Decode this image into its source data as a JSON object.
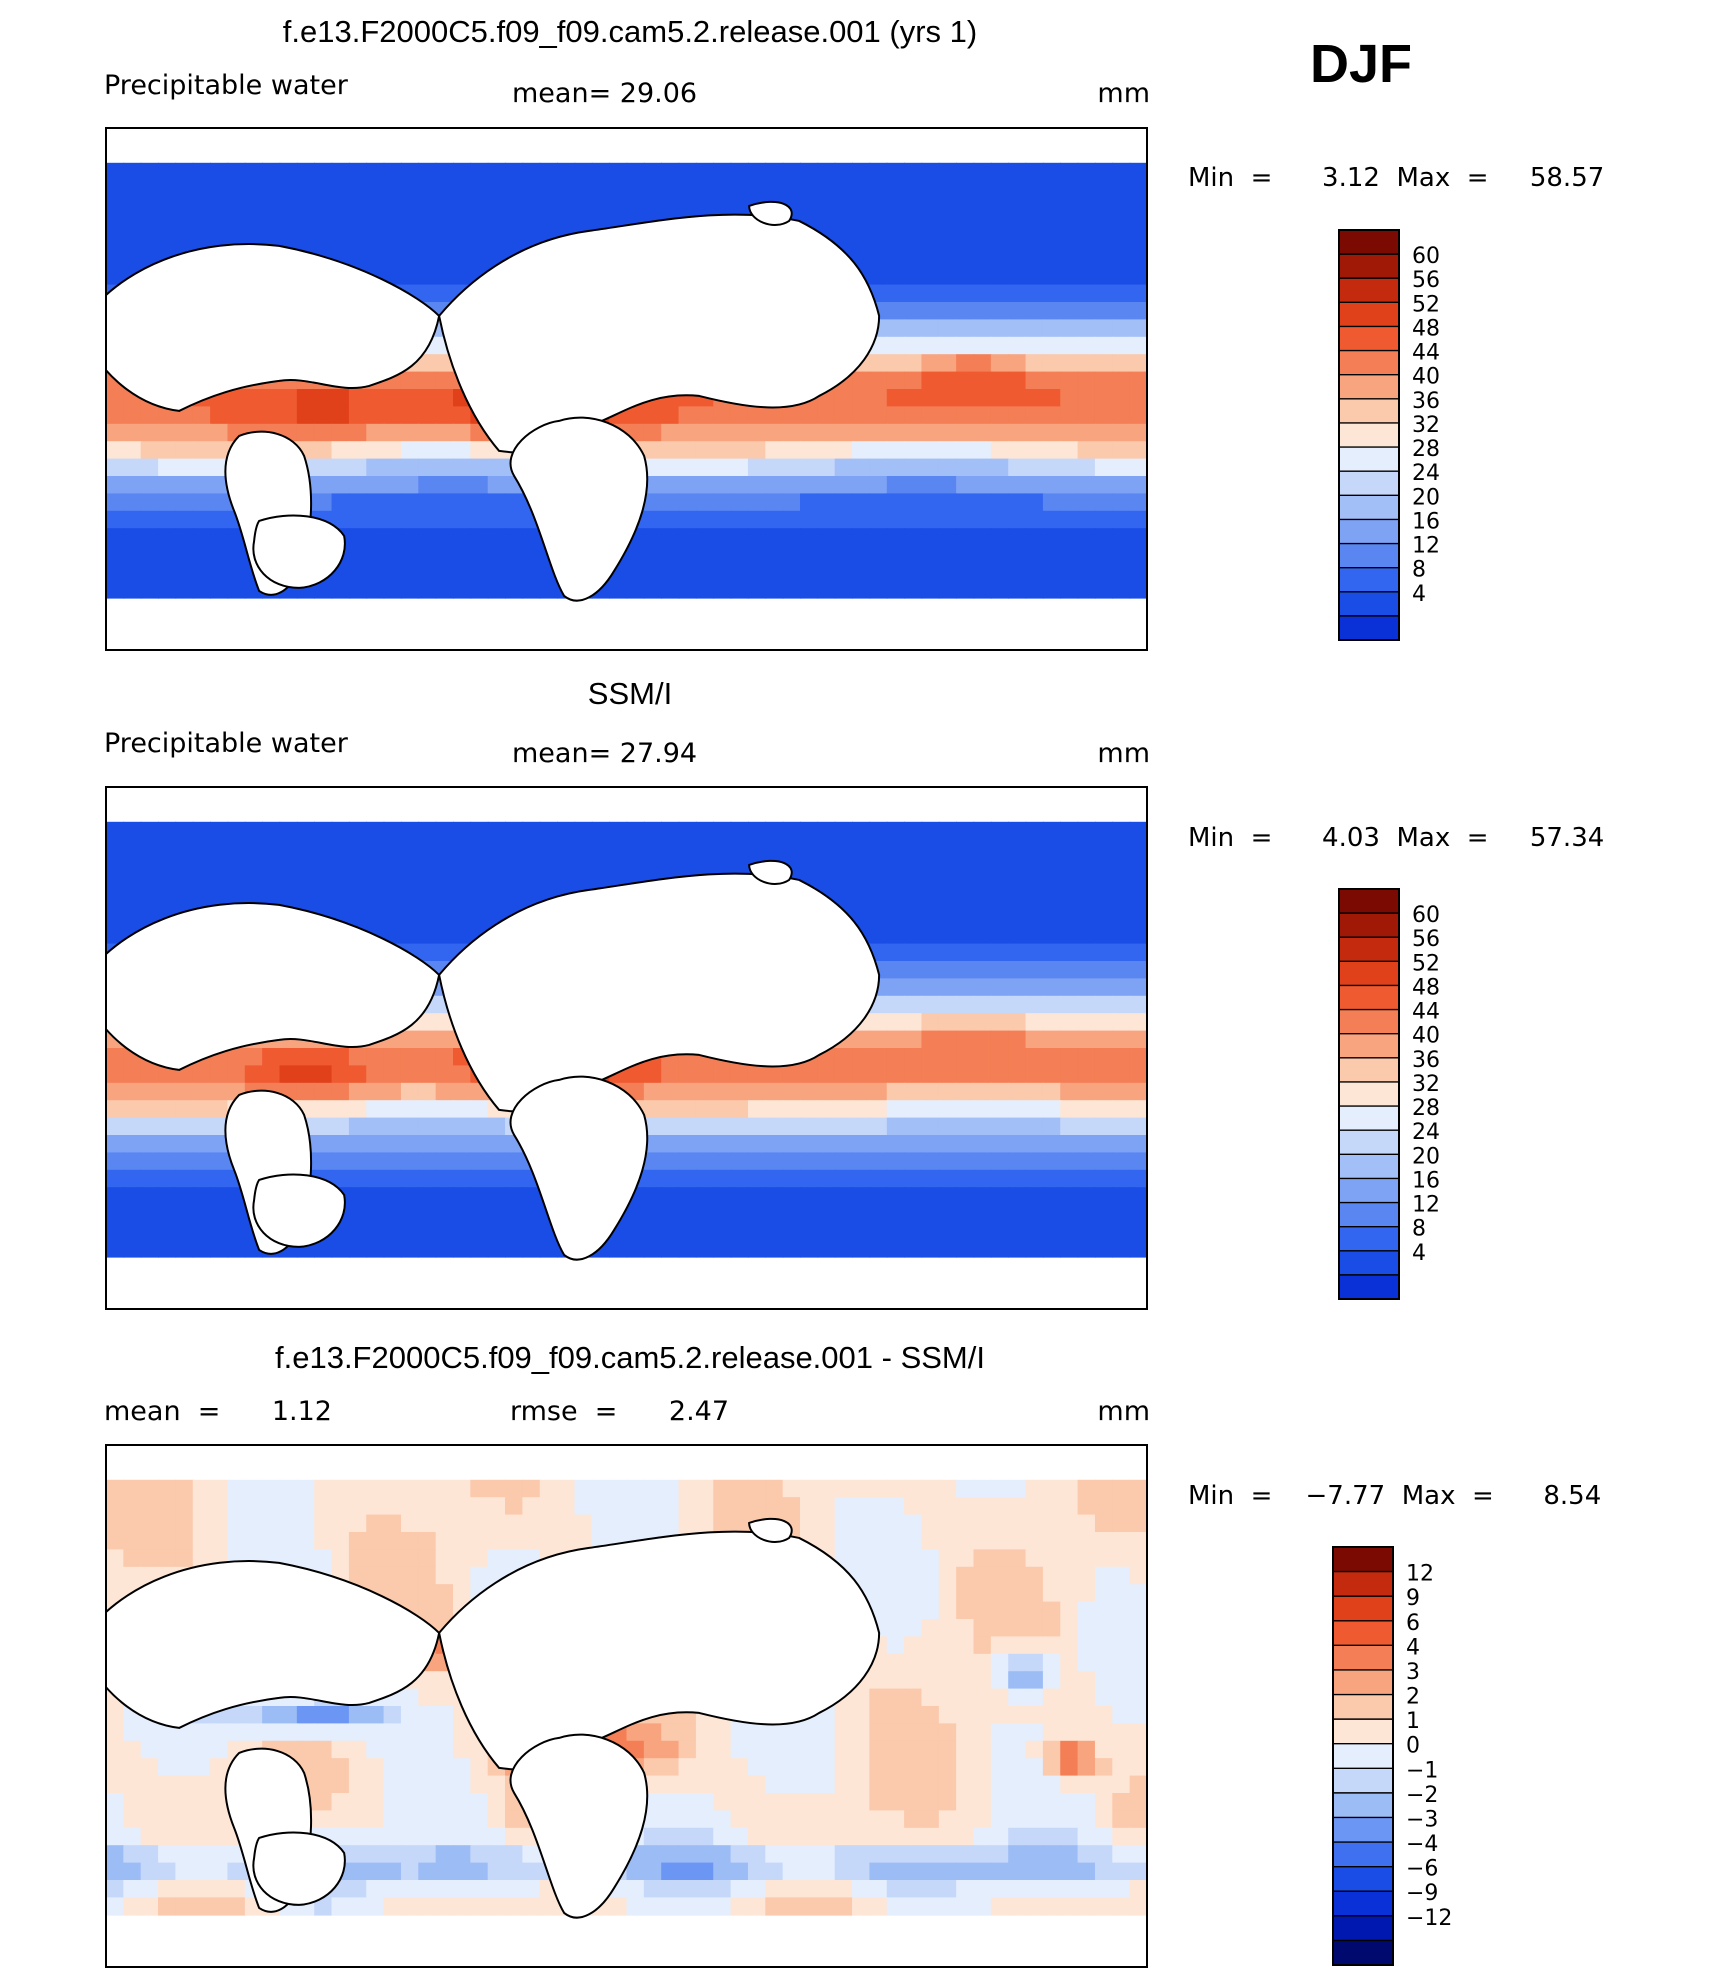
{
  "season": "DJF",
  "colors": {
    "abs_levels": [
      "#000a6e",
      "#0018b0",
      "#0a30d8",
      "#1a4ce6",
      "#3366f0",
      "#5a86f2",
      "#7fa3f4",
      "#a3bff7",
      "#c6d8fa",
      "#e4eefc",
      "#fde6d6",
      "#fbc9ab",
      "#f8a47f",
      "#f47e55",
      "#ef5a30",
      "#e0401a",
      "#c42a0e",
      "#a01806",
      "#7a0a02"
    ],
    "diff_levels": [
      "#000a6e",
      "#0018b0",
      "#0a30d8",
      "#1a4ce6",
      "#3f70f0",
      "#6c96f4",
      "#9cbcf6",
      "#c6d8fa",
      "#e4eefc",
      "#fde6d6",
      "#fbc9ab",
      "#f8a47f",
      "#f47e55",
      "#ef5a30",
      "#e0401a",
      "#c42a0e",
      "#7a0a02"
    ]
  },
  "panels": [
    {
      "title": "f.e13.F2000C5.f09_f09.cam5.2.release.001 (yrs 1)",
      "left_label": "Precipitable  water",
      "center_label": "mean=   29.06",
      "units": "mm",
      "min_max": "Min  =      3.12  Max  =     58.57",
      "colorbar_labels": [
        "60",
        "56",
        "52",
        "48",
        "44",
        "40",
        "36",
        "32",
        "28",
        "24",
        "20",
        "16",
        "12",
        "8",
        "4"
      ]
    },
    {
      "title": "SSM/I",
      "left_label": "Precipitable  water",
      "center_label": "mean=   27.94",
      "units": "mm",
      "min_max": "Min  =      4.03  Max  =     57.34",
      "colorbar_labels": [
        "60",
        "56",
        "52",
        "48",
        "44",
        "40",
        "36",
        "32",
        "28",
        "24",
        "20",
        "16",
        "12",
        "8",
        "4"
      ]
    },
    {
      "title": "f.e13.F2000C5.f09_f09.cam5.2.release.001 - SSM/I",
      "left_label": "mean  =      1.12",
      "center_label": "rmse  =      2.47",
      "units": "mm",
      "min_max": "Min  =    −7.77  Max  =      8.54",
      "colorbar_labels": [
        "12",
        "9",
        "6",
        "4",
        "3",
        "2",
        "1",
        "0",
        "−1",
        "−2",
        "−3",
        "−4",
        "−6",
        "−9",
        "−12"
      ]
    }
  ],
  "chart_data": [
    {
      "type": "heatmap",
      "title": "f.e13.F2000C5.f09_f09.cam5.2.release.001 (yrs 1)",
      "variable": "Precipitable  water",
      "units": "mm",
      "mean": 29.06,
      "min": 3.12,
      "max": 58.57,
      "levels": [
        4,
        8,
        12,
        16,
        20,
        24,
        28,
        32,
        36,
        40,
        44,
        48,
        52,
        56,
        60
      ]
    },
    {
      "type": "heatmap",
      "title": "SSM/I",
      "variable": "Precipitable  water",
      "units": "mm",
      "mean": 27.94,
      "min": 4.03,
      "max": 57.34,
      "levels": [
        4,
        8,
        12,
        16,
        20,
        24,
        28,
        32,
        36,
        40,
        44,
        48,
        52,
        56,
        60
      ]
    },
    {
      "type": "heatmap",
      "title": "f.e13.F2000C5.f09_f09.cam5.2.release.001 - SSM/I",
      "units": "mm",
      "mean": 1.12,
      "rmse": 2.47,
      "min": -7.77,
      "max": 8.54,
      "levels": [
        -12,
        -9,
        -6,
        -4,
        -3,
        -2,
        -1,
        0,
        1,
        2,
        3,
        4,
        6,
        9,
        12
      ]
    }
  ]
}
